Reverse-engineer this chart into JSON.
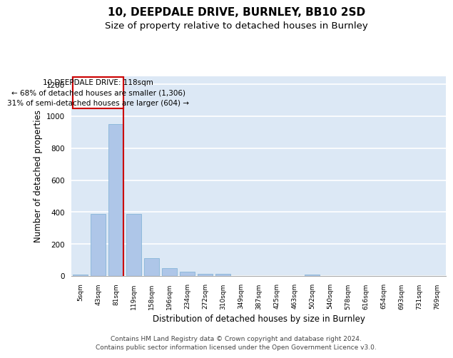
{
  "title": "10, DEEPDALE DRIVE, BURNLEY, BB10 2SD",
  "subtitle": "Size of property relative to detached houses in Burnley",
  "xlabel": "Distribution of detached houses by size in Burnley",
  "ylabel": "Number of detached properties",
  "categories": [
    "5sqm",
    "43sqm",
    "81sqm",
    "119sqm",
    "158sqm",
    "196sqm",
    "234sqm",
    "272sqm",
    "310sqm",
    "349sqm",
    "387sqm",
    "425sqm",
    "463sqm",
    "502sqm",
    "540sqm",
    "578sqm",
    "616sqm",
    "654sqm",
    "693sqm",
    "731sqm",
    "769sqm"
  ],
  "bar_values": [
    10,
    390,
    950,
    390,
    110,
    50,
    25,
    12,
    12,
    0,
    0,
    0,
    0,
    10,
    0,
    0,
    0,
    0,
    0,
    0,
    0
  ],
  "bar_color": "#aec6e8",
  "bar_edge_color": "#7aaed4",
  "background_color": "#dce8f5",
  "grid_color": "#ffffff",
  "annotation_box_color": "#cc0000",
  "annotation_text": "10 DEEPDALE DRIVE: 118sqm\n← 68% of detached houses are smaller (1,306)\n31% of semi-detached houses are larger (604) →",
  "property_line_color": "#cc0000",
  "ylim": [
    0,
    1250
  ],
  "yticks": [
    0,
    200,
    400,
    600,
    800,
    1000,
    1200
  ],
  "footnote": "Contains HM Land Registry data © Crown copyright and database right 2024.\nContains public sector information licensed under the Open Government Licence v3.0.",
  "title_fontsize": 11,
  "subtitle_fontsize": 9.5,
  "xlabel_fontsize": 8.5,
  "ylabel_fontsize": 8.5,
  "annotation_fontsize": 7.5,
  "footnote_fontsize": 6.5
}
